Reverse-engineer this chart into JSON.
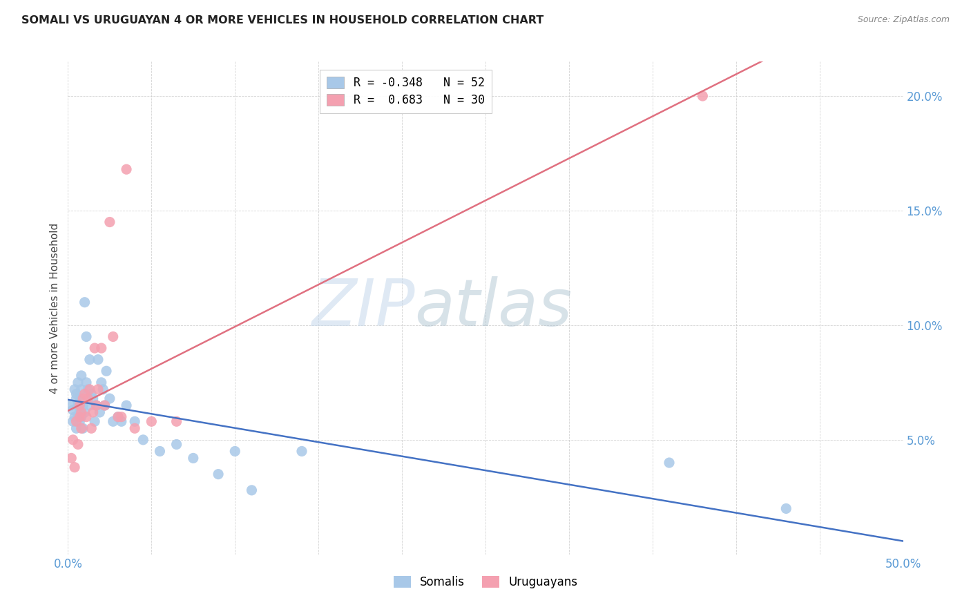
{
  "title": "SOMALI VS URUGUAYAN 4 OR MORE VEHICLES IN HOUSEHOLD CORRELATION CHART",
  "source": "Source: ZipAtlas.com",
  "ylabel": "4 or more Vehicles in Household",
  "xmin": 0.0,
  "xmax": 0.5,
  "ymin": 0.0,
  "ymax": 0.215,
  "yticks": [
    0.05,
    0.1,
    0.15,
    0.2
  ],
  "ytick_labels": [
    "5.0%",
    "10.0%",
    "15.0%",
    "20.0%"
  ],
  "xticks": [
    0.0,
    0.05,
    0.1,
    0.15,
    0.2,
    0.25,
    0.3,
    0.35,
    0.4,
    0.45,
    0.5
  ],
  "xtick_labels": [
    "0.0%",
    "",
    "",
    "",
    "",
    "",
    "",
    "",
    "",
    "",
    "50.0%"
  ],
  "legend_blue_label": "R = -0.348   N = 52",
  "legend_pink_label": "R =  0.683   N = 30",
  "blue_color": "#A8C8E8",
  "pink_color": "#F4A0B0",
  "line_blue_color": "#4472C4",
  "line_pink_color": "#E07080",
  "somali_x": [
    0.002,
    0.003,
    0.003,
    0.004,
    0.004,
    0.005,
    0.005,
    0.005,
    0.006,
    0.006,
    0.006,
    0.007,
    0.007,
    0.007,
    0.008,
    0.008,
    0.008,
    0.009,
    0.009,
    0.01,
    0.01,
    0.011,
    0.011,
    0.012,
    0.013,
    0.013,
    0.014,
    0.015,
    0.016,
    0.017,
    0.018,
    0.019,
    0.02,
    0.021,
    0.022,
    0.023,
    0.025,
    0.027,
    0.03,
    0.032,
    0.035,
    0.04,
    0.045,
    0.055,
    0.065,
    0.075,
    0.09,
    0.1,
    0.11,
    0.14,
    0.36,
    0.43
  ],
  "somali_y": [
    0.065,
    0.058,
    0.063,
    0.072,
    0.06,
    0.07,
    0.068,
    0.055,
    0.075,
    0.06,
    0.065,
    0.068,
    0.058,
    0.062,
    0.078,
    0.06,
    0.072,
    0.065,
    0.055,
    0.062,
    0.11,
    0.095,
    0.075,
    0.072,
    0.085,
    0.065,
    0.07,
    0.068,
    0.058,
    0.065,
    0.085,
    0.062,
    0.075,
    0.072,
    0.065,
    0.08,
    0.068,
    0.058,
    0.06,
    0.058,
    0.065,
    0.058,
    0.05,
    0.045,
    0.048,
    0.042,
    0.035,
    0.045,
    0.028,
    0.045,
    0.04,
    0.02
  ],
  "uruguayan_x": [
    0.002,
    0.003,
    0.004,
    0.005,
    0.006,
    0.007,
    0.007,
    0.008,
    0.008,
    0.009,
    0.01,
    0.011,
    0.012,
    0.013,
    0.014,
    0.015,
    0.016,
    0.017,
    0.018,
    0.02,
    0.022,
    0.025,
    0.027,
    0.03,
    0.032,
    0.035,
    0.04,
    0.05,
    0.065,
    0.38
  ],
  "uruguayan_y": [
    0.042,
    0.05,
    0.038,
    0.058,
    0.048,
    0.06,
    0.065,
    0.055,
    0.062,
    0.068,
    0.07,
    0.06,
    0.068,
    0.072,
    0.055,
    0.062,
    0.09,
    0.065,
    0.072,
    0.09,
    0.065,
    0.145,
    0.095,
    0.06,
    0.06,
    0.168,
    0.055,
    0.058,
    0.058,
    0.2
  ],
  "somali_R": -0.348,
  "somali_N": 52,
  "uruguayan_R": 0.683,
  "uruguayan_N": 30
}
